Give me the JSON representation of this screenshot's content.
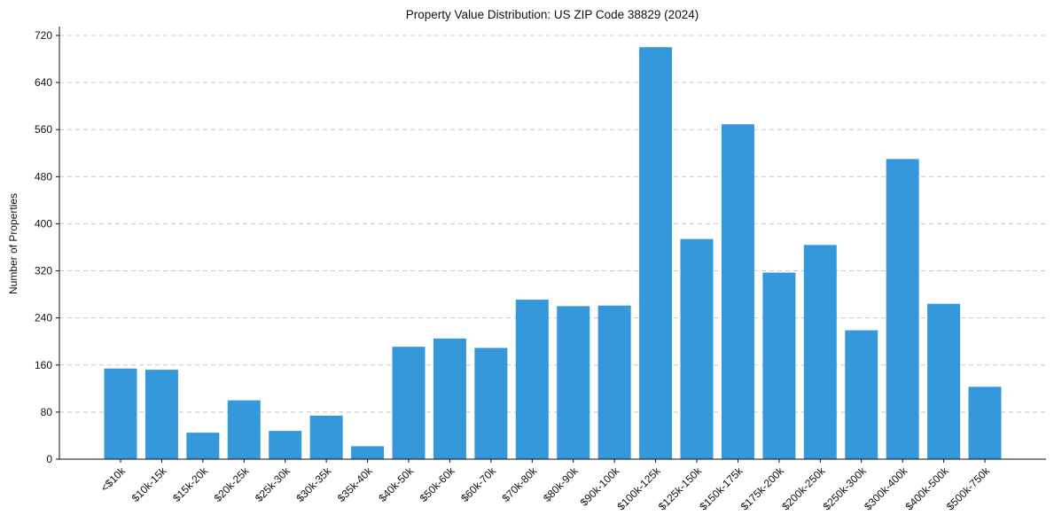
{
  "chart_data": {
    "type": "bar",
    "title": "Property Value Distribution: US ZIP Code 38829 (2024)",
    "xlabel": "",
    "ylabel": "Number of Properties",
    "ylim": [
      0,
      735
    ],
    "yticks": [
      0,
      80,
      160,
      240,
      320,
      400,
      480,
      560,
      640,
      720
    ],
    "grid": "y-dashed",
    "color": "#3498db",
    "categories": [
      "<$10k",
      "$10k-15k",
      "$15k-20k",
      "$20k-25k",
      "$25k-30k",
      "$30k-35k",
      "$35k-40k",
      "$40k-50k",
      "$50k-60k",
      "$60k-70k",
      "$70k-80k",
      "$80k-90k",
      "$90k-100k",
      "$100k-125k",
      "$125k-150k",
      "$150k-175k",
      "$175k-200k",
      "$200k-250k",
      "$250k-300k",
      "$300k-400k",
      "$400k-500k",
      "$500k-750k"
    ],
    "values": [
      154,
      152,
      45,
      100,
      48,
      74,
      22,
      191,
      205,
      189,
      271,
      260,
      261,
      700,
      374,
      569,
      317,
      364,
      219,
      510,
      264,
      123
    ]
  }
}
